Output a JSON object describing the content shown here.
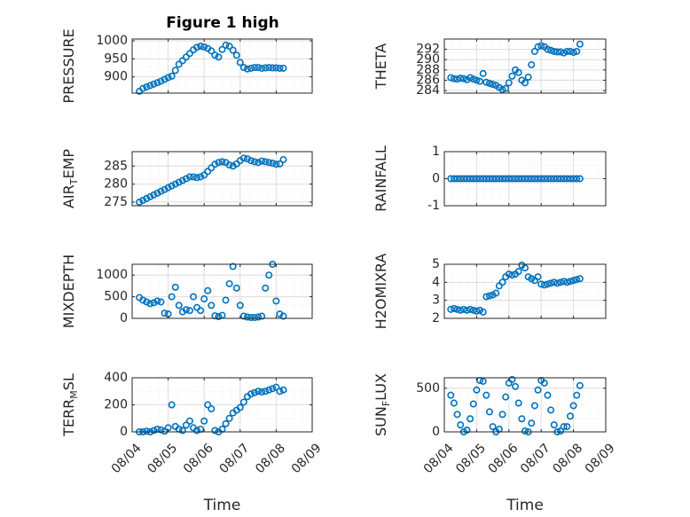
{
  "figure": {
    "title": "Figure 1 high"
  },
  "colors": {
    "marker": "#0072BD",
    "axis": "#262626",
    "grid": "#dcdcdc",
    "background": "#ffffff"
  },
  "chart_data": [
    {
      "type": "scatter",
      "title": "Figure 1 high",
      "ylabel": "PRESSURE",
      "xlabel": "",
      "xlim": [
        0,
        5
      ],
      "ylim": [
        855,
        1005
      ],
      "yticks": [
        900,
        950,
        1000
      ],
      "xticks": [
        0,
        1,
        2,
        3,
        4,
        5
      ],
      "xticklabels": [],
      "grid": true,
      "x": [
        0.2,
        0.3,
        0.4,
        0.5,
        0.6,
        0.7,
        0.8,
        0.9,
        1.0,
        1.1,
        1.2,
        1.3,
        1.4,
        1.5,
        1.6,
        1.7,
        1.8,
        1.9,
        2.0,
        2.1,
        2.2,
        2.3,
        2.4,
        2.5,
        2.6,
        2.7,
        2.8,
        2.9,
        3.0,
        3.1,
        3.2,
        3.3,
        3.4,
        3.5,
        3.6,
        3.7,
        3.8,
        3.9,
        4.0,
        4.1,
        4.2
      ],
      "values": [
        860,
        868,
        872,
        876,
        880,
        884,
        888,
        893,
        898,
        902,
        918,
        935,
        945,
        955,
        965,
        975,
        982,
        985,
        983,
        979,
        972,
        960,
        955,
        976,
        988,
        985,
        974,
        960,
        940,
        926,
        922,
        924,
        926,
        926,
        924,
        925,
        926,
        925,
        925,
        924,
        924
      ]
    },
    {
      "type": "scatter",
      "ylabel": "THETA",
      "xlabel": "",
      "xlim": [
        0,
        5
      ],
      "ylim": [
        283.5,
        294
      ],
      "yticks": [
        284,
        286,
        288,
        290,
        292
      ],
      "xticks": [
        0,
        1,
        2,
        3,
        4,
        5
      ],
      "xticklabels": [],
      "grid": true,
      "x": [
        0.2,
        0.3,
        0.4,
        0.5,
        0.6,
        0.7,
        0.8,
        0.9,
        1.0,
        1.1,
        1.2,
        1.3,
        1.4,
        1.5,
        1.6,
        1.7,
        1.8,
        1.9,
        2.0,
        2.1,
        2.2,
        2.3,
        2.4,
        2.5,
        2.6,
        2.7,
        2.8,
        2.9,
        3.0,
        3.1,
        3.2,
        3.3,
        3.4,
        3.5,
        3.6,
        3.7,
        3.8,
        3.9,
        4.0,
        4.1,
        4.2
      ],
      "values": [
        286.5,
        286.3,
        286.2,
        286.4,
        286.3,
        286.1,
        286.5,
        286.2,
        286.0,
        285.8,
        287.3,
        285.6,
        285.4,
        285.2,
        285.0,
        284.6,
        284.2,
        284.4,
        285.5,
        286.8,
        288.0,
        287.5,
        286.0,
        285.5,
        286.6,
        289.0,
        291.6,
        292.5,
        292.7,
        292.5,
        292.0,
        291.8,
        291.6,
        291.5,
        291.5,
        291.3,
        291.6,
        291.6,
        291.4,
        291.6,
        293.0
      ]
    },
    {
      "type": "scatter",
      "ylabel": "AIR_T EMP",
      "xlabel": "",
      "xlim": [
        0,
        5
      ],
      "ylim": [
        274,
        289
      ],
      "yticks": [
        275,
        280,
        285
      ],
      "xticks": [
        0,
        1,
        2,
        3,
        4,
        5
      ],
      "xticklabels": [],
      "grid": true,
      "x": [
        0.2,
        0.3,
        0.4,
        0.5,
        0.6,
        0.7,
        0.8,
        0.9,
        1.0,
        1.1,
        1.2,
        1.3,
        1.4,
        1.5,
        1.6,
        1.7,
        1.8,
        1.9,
        2.0,
        2.1,
        2.2,
        2.3,
        2.4,
        2.5,
        2.6,
        2.7,
        2.8,
        2.9,
        3.0,
        3.1,
        3.2,
        3.3,
        3.4,
        3.5,
        3.6,
        3.7,
        3.8,
        3.9,
        4.0,
        4.1,
        4.2
      ],
      "values": [
        275.0,
        275.5,
        276.0,
        276.5,
        277.0,
        277.5,
        278.0,
        278.5,
        279.0,
        279.5,
        280.0,
        280.5,
        281.0,
        281.5,
        282.0,
        282.0,
        281.8,
        282.0,
        282.5,
        283.5,
        284.5,
        285.5,
        286.0,
        286.2,
        286.0,
        285.3,
        285.0,
        285.6,
        286.5,
        287.2,
        287.0,
        286.5,
        286.2,
        286.0,
        286.4,
        286.2,
        286.0,
        285.8,
        285.5,
        285.6,
        286.8
      ]
    },
    {
      "type": "scatter",
      "ylabel": "RAINFALL",
      "xlabel": "",
      "xlim": [
        0,
        5
      ],
      "ylim": [
        -1,
        1
      ],
      "yticks": [
        -1,
        0,
        1
      ],
      "xticks": [
        0,
        1,
        2,
        3,
        4,
        5
      ],
      "xticklabels": [],
      "grid": true,
      "x": [
        0.2,
        0.3,
        0.4,
        0.5,
        0.6,
        0.7,
        0.8,
        0.9,
        1.0,
        1.1,
        1.2,
        1.3,
        1.4,
        1.5,
        1.6,
        1.7,
        1.8,
        1.9,
        2.0,
        2.1,
        2.2,
        2.3,
        2.4,
        2.5,
        2.6,
        2.7,
        2.8,
        2.9,
        3.0,
        3.1,
        3.2,
        3.3,
        3.4,
        3.5,
        3.6,
        3.7,
        3.8,
        3.9,
        4.0,
        4.1,
        4.2
      ],
      "values": [
        0,
        0,
        0,
        0,
        0,
        0,
        0,
        0,
        0,
        0,
        0,
        0,
        0,
        0,
        0,
        0,
        0,
        0,
        0,
        0,
        0,
        0,
        0,
        0,
        0,
        0,
        0,
        0,
        0,
        0,
        0,
        0,
        0,
        0,
        0,
        0,
        0,
        0,
        0,
        0,
        0
      ]
    },
    {
      "type": "scatter",
      "ylabel": "MIXDEPTH",
      "xlabel": "",
      "xlim": [
        0,
        5
      ],
      "ylim": [
        0,
        1250
      ],
      "yticks": [
        0,
        500,
        1000
      ],
      "xticks": [
        0,
        1,
        2,
        3,
        4,
        5
      ],
      "xticklabels": [],
      "grid": true,
      "x": [
        0.2,
        0.3,
        0.4,
        0.5,
        0.6,
        0.7,
        0.8,
        0.9,
        1.0,
        1.1,
        1.2,
        1.3,
        1.4,
        1.5,
        1.6,
        1.7,
        1.8,
        1.9,
        2.0,
        2.1,
        2.2,
        2.3,
        2.4,
        2.5,
        2.6,
        2.7,
        2.8,
        2.9,
        3.0,
        3.1,
        3.2,
        3.3,
        3.4,
        3.5,
        3.6,
        3.7,
        3.8,
        3.9,
        4.0,
        4.1,
        4.2
      ],
      "values": [
        480,
        420,
        380,
        340,
        360,
        400,
        380,
        120,
        100,
        500,
        720,
        300,
        150,
        200,
        180,
        500,
        250,
        180,
        450,
        640,
        300,
        60,
        40,
        70,
        420,
        800,
        1200,
        700,
        300,
        50,
        30,
        20,
        20,
        30,
        50,
        700,
        1000,
        1250,
        400,
        100,
        50
      ]
    },
    {
      "type": "scatter",
      "ylabel": "H2OMIXRA",
      "xlabel": "",
      "xlim": [
        0,
        5
      ],
      "ylim": [
        2,
        5
      ],
      "yticks": [
        2,
        3,
        4,
        5
      ],
      "xticks": [
        0,
        1,
        2,
        3,
        4,
        5
      ],
      "xticklabels": [],
      "grid": true,
      "x": [
        0.2,
        0.3,
        0.4,
        0.5,
        0.6,
        0.7,
        0.8,
        0.9,
        1.0,
        1.1,
        1.2,
        1.3,
        1.4,
        1.5,
        1.6,
        1.7,
        1.8,
        1.9,
        2.0,
        2.1,
        2.2,
        2.3,
        2.4,
        2.5,
        2.6,
        2.7,
        2.8,
        2.9,
        3.0,
        3.1,
        3.2,
        3.3,
        3.4,
        3.5,
        3.6,
        3.7,
        3.8,
        3.9,
        4.0,
        4.1,
        4.2
      ],
      "values": [
        2.5,
        2.55,
        2.5,
        2.45,
        2.5,
        2.45,
        2.5,
        2.45,
        2.4,
        2.45,
        2.35,
        3.2,
        3.25,
        3.3,
        3.4,
        3.8,
        4.0,
        4.3,
        4.45,
        4.4,
        4.45,
        4.6,
        4.95,
        4.8,
        4.3,
        4.2,
        4.1,
        4.3,
        3.9,
        3.85,
        3.9,
        3.95,
        4.0,
        3.95,
        4.0,
        4.05,
        4.0,
        4.05,
        4.1,
        4.15,
        4.2
      ]
    },
    {
      "type": "scatter",
      "ylabel": "TERR_M SL",
      "xlabel": "Time",
      "xlim": [
        0,
        5
      ],
      "ylim": [
        0,
        400
      ],
      "yticks": [
        0,
        200,
        400
      ],
      "xticks": [
        0,
        1,
        2,
        3,
        4,
        5
      ],
      "xticklabels": [
        "08/04",
        "08/05",
        "08/06",
        "08/07",
        "08/08",
        "08/09"
      ],
      "grid": true,
      "x": [
        0.2,
        0.3,
        0.4,
        0.5,
        0.6,
        0.7,
        0.8,
        0.9,
        1.0,
        1.1,
        1.2,
        1.3,
        1.4,
        1.5,
        1.6,
        1.7,
        1.8,
        1.9,
        2.0,
        2.1,
        2.2,
        2.3,
        2.4,
        2.5,
        2.6,
        2.7,
        2.8,
        2.9,
        3.0,
        3.1,
        3.2,
        3.3,
        3.4,
        3.5,
        3.6,
        3.7,
        3.8,
        3.9,
        4.0,
        4.1,
        4.2
      ],
      "values": [
        0,
        0,
        5,
        0,
        10,
        20,
        15,
        5,
        30,
        200,
        40,
        20,
        10,
        50,
        80,
        30,
        10,
        20,
        80,
        200,
        170,
        10,
        0,
        20,
        60,
        100,
        140,
        160,
        180,
        220,
        260,
        280,
        290,
        300,
        295,
        300,
        310,
        320,
        330,
        300,
        310
      ]
    },
    {
      "type": "scatter",
      "ylabel": "SUN_F LUX",
      "xlabel": "Time",
      "xlim": [
        0,
        5
      ],
      "ylim": [
        0,
        620
      ],
      "yticks": [
        0,
        500
      ],
      "xticks": [
        0,
        1,
        2,
        3,
        4,
        5
      ],
      "xticklabels": [
        "08/04",
        "08/05",
        "08/06",
        "08/07",
        "08/08",
        "08/09"
      ],
      "grid": true,
      "x": [
        0.2,
        0.3,
        0.4,
        0.5,
        0.6,
        0.7,
        0.8,
        0.9,
        1.0,
        1.1,
        1.2,
        1.3,
        1.4,
        1.5,
        1.6,
        1.7,
        1.8,
        1.9,
        2.0,
        2.1,
        2.2,
        2.3,
        2.4,
        2.5,
        2.6,
        2.7,
        2.8,
        2.9,
        3.0,
        3.1,
        3.2,
        3.3,
        3.4,
        3.5,
        3.6,
        3.7,
        3.8,
        3.9,
        4.0,
        4.1,
        4.2
      ],
      "values": [
        420,
        330,
        200,
        80,
        0,
        20,
        150,
        320,
        480,
        590,
        580,
        420,
        230,
        60,
        0,
        30,
        200,
        400,
        560,
        600,
        520,
        330,
        150,
        10,
        0,
        100,
        300,
        480,
        590,
        560,
        420,
        250,
        80,
        0,
        10,
        60,
        60,
        180,
        300,
        420,
        530
      ]
    }
  ]
}
